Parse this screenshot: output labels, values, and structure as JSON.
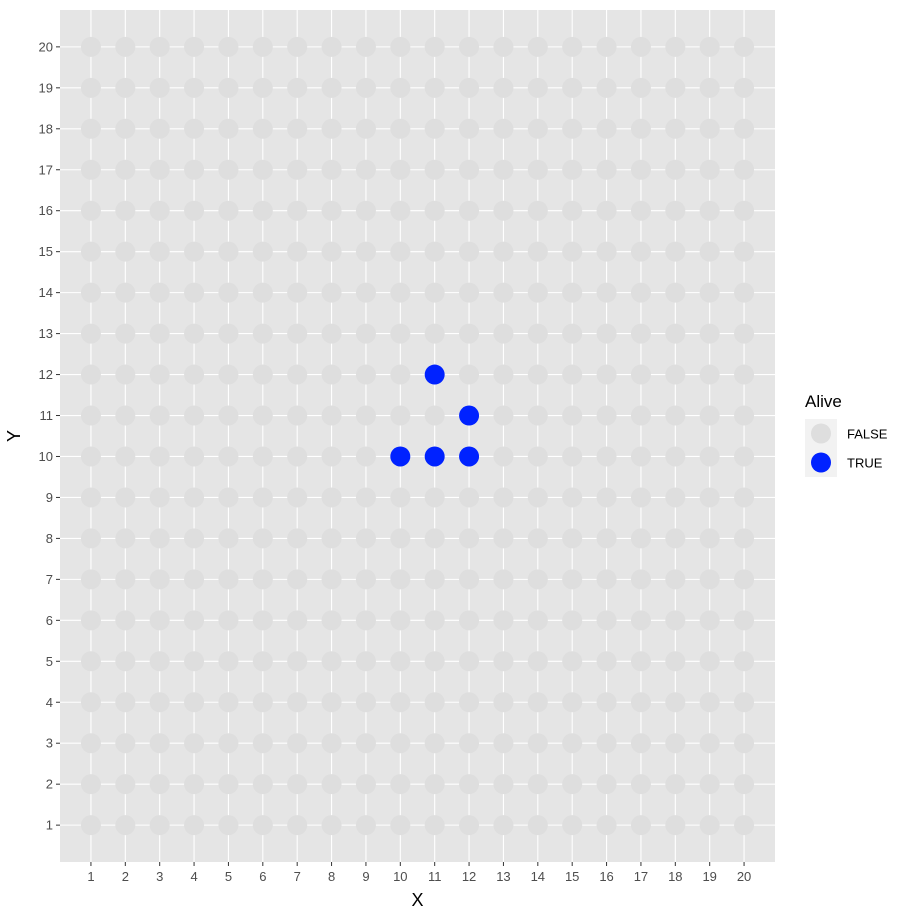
{
  "chart_data": {
    "type": "scatter",
    "xlabel": "X",
    "ylabel": "Y",
    "xlim": [
      0.1,
      20.9
    ],
    "ylim": [
      0.1,
      20.9
    ],
    "x_ticks": [
      1,
      2,
      3,
      4,
      5,
      6,
      7,
      8,
      9,
      10,
      11,
      12,
      13,
      14,
      15,
      16,
      17,
      18,
      19,
      20
    ],
    "y_ticks": [
      1,
      2,
      3,
      4,
      5,
      6,
      7,
      8,
      9,
      10,
      11,
      12,
      13,
      14,
      15,
      16,
      17,
      18,
      19,
      20
    ],
    "grid": true,
    "grid_x_range": [
      1,
      20
    ],
    "grid_y_range": [
      1,
      20
    ],
    "legend": {
      "title": "Alive",
      "placement": "right",
      "entries": [
        {
          "label": "FALSE",
          "color": "#dedede"
        },
        {
          "label": "TRUE",
          "color": "#0022ff"
        }
      ]
    },
    "series": [
      {
        "name": "FALSE",
        "color": "#dedede",
        "description_rule": "every integer cell 1..20 x 1..20 not listed in TRUE"
      },
      {
        "name": "TRUE",
        "color": "#0022ff",
        "points": [
          {
            "x": 11,
            "y": 12
          },
          {
            "x": 12,
            "y": 11
          },
          {
            "x": 10,
            "y": 10
          },
          {
            "x": 11,
            "y": 10
          },
          {
            "x": 12,
            "y": 10
          }
        ]
      }
    ]
  },
  "colors": {
    "panel_background": "#e5e5e5",
    "gridline": "#ffffff",
    "tick_mark": "#333333"
  }
}
